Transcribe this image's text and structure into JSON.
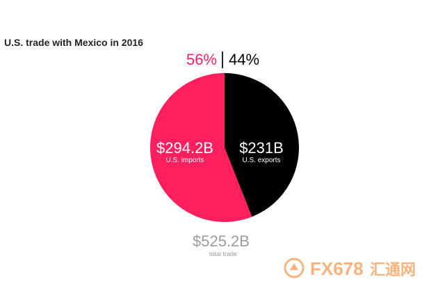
{
  "chart_data": {
    "type": "pie",
    "title": "U.S. trade with Mexico in 2016",
    "slices": [
      {
        "name": "U.S. imports",
        "value": 294.2,
        "value_label": "$294.2B",
        "percent_label": "56%",
        "color": "#ff1f5f"
      },
      {
        "name": "U.S. exports",
        "value": 231,
        "value_label": "$231B",
        "percent_label": "44%",
        "color": "#000000"
      }
    ],
    "total": {
      "value_label": "$525.2B",
      "label": "total trade"
    }
  },
  "watermark": {
    "text": "FX678",
    "suffix": "汇通网",
    "icon": "fx678-logo-icon",
    "color": "#f9b27a"
  }
}
